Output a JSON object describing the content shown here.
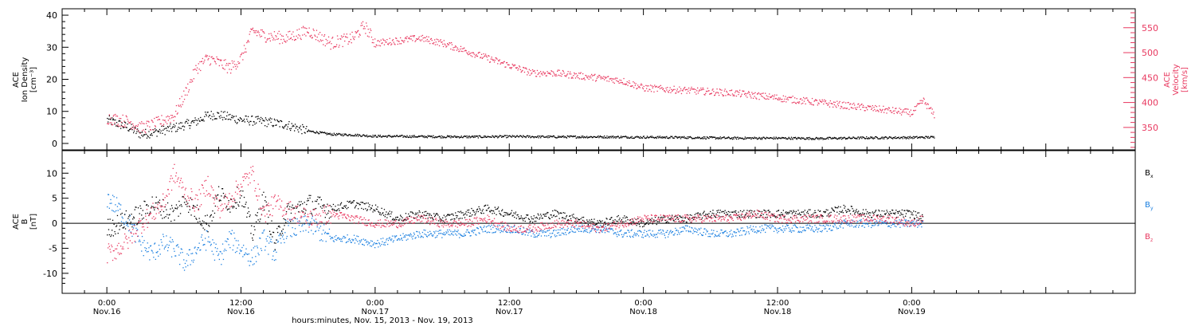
{
  "chart_data": [
    {
      "type": "scatter",
      "panel": "top",
      "ylabel_left": [
        "ACE",
        "Ion Density",
        "[cm⁻³]"
      ],
      "ylabel_right": [
        "ACE",
        "Velocity",
        "[km/s]"
      ],
      "ylim_left": [
        -2,
        42
      ],
      "yticks_left": [
        "0",
        "10",
        "20",
        "30",
        "40"
      ],
      "ylim_right": [
        305,
        588
      ],
      "yticks_right": [
        "350",
        "400",
        "450",
        "500",
        "550"
      ],
      "xlim_hours": [
        -4,
        92
      ],
      "series": [
        {
          "name": "",
          "axis": "left",
          "color": "#000000",
          "x_hours": [
            0,
            2,
            3,
            4,
            6,
            8,
            9,
            10,
            12,
            14,
            16,
            18,
            20,
            22,
            24,
            28,
            32,
            36,
            40,
            44,
            48,
            52,
            56,
            60,
            64,
            68,
            72,
            74
          ],
          "values": [
            7.5,
            5,
            3,
            3.5,
            5,
            7,
            9,
            9,
            7.5,
            7,
            6,
            4,
            3,
            2.8,
            2.4,
            2.3,
            2.2,
            2.3,
            2.2,
            2.2,
            2.1,
            2.0,
            1.8,
            1.8,
            1.7,
            1.9,
            2.0,
            2.1
          ]
        },
        {
          "name": "",
          "axis": "right",
          "color": "#e8385f",
          "x_hours": [
            0,
            2,
            3,
            4,
            6,
            7,
            8,
            9,
            10,
            11,
            12,
            13,
            14,
            16,
            18,
            20,
            22,
            23,
            24,
            26,
            28,
            30,
            32,
            34,
            36,
            38,
            40,
            42,
            44,
            46,
            48,
            52,
            56,
            60,
            64,
            68,
            70,
            72,
            73,
            74
          ],
          "values": [
            370,
            362,
            350,
            355,
            375,
            420,
            470,
            490,
            480,
            470,
            490,
            545,
            535,
            530,
            545,
            520,
            530,
            555,
            520,
            525,
            530,
            520,
            505,
            490,
            475,
            460,
            460,
            455,
            450,
            445,
            430,
            425,
            420,
            410,
            400,
            390,
            385,
            380,
            405,
            375
          ]
        }
      ]
    },
    {
      "type": "scatter",
      "panel": "bottom",
      "ylabel_left": [
        "ACE",
        "B",
        "[nT]"
      ],
      "ylim": [
        -14,
        14.5
      ],
      "yticks": [
        "-10",
        "-5",
        "0",
        "5",
        "10"
      ],
      "xlim_hours": [
        -4,
        92
      ],
      "xtick_times": [
        "0:00",
        "12:00",
        "0:00",
        "12:00",
        "0:00",
        "12:00",
        "0:00"
      ],
      "xtick_dates": [
        "Nov.16",
        "Nov.16",
        "Nov.17",
        "Nov.17",
        "Nov.18",
        "Nov.18",
        "Nov.19"
      ],
      "xtick_hours": [
        0,
        12,
        24,
        36,
        48,
        60,
        72
      ],
      "xlabel": "hours:minutes, Nov. 15, 2013 - Nov. 19, 2013",
      "series": [
        {
          "name": "Bx",
          "color": "#000000",
          "x_hours": [
            0,
            1,
            2,
            3,
            4,
            5,
            6,
            7,
            8,
            9,
            10,
            11,
            12,
            13,
            14,
            15,
            16,
            17,
            18,
            20,
            22,
            24,
            26,
            28,
            30,
            32,
            34,
            36,
            38,
            40,
            42,
            44,
            46,
            48,
            50,
            52,
            54,
            56,
            58,
            60,
            62,
            64,
            66,
            68,
            70,
            72,
            73
          ],
          "values": [
            -1,
            0,
            1,
            2,
            4,
            3,
            2,
            5,
            2,
            0,
            6,
            4,
            6,
            -2,
            5,
            -4,
            2,
            3,
            4,
            3,
            4,
            3,
            1,
            2,
            1,
            2,
            3,
            2,
            1,
            2,
            1,
            0,
            1,
            0,
            1,
            1,
            2,
            2,
            2,
            2,
            2,
            2,
            3,
            2,
            2,
            2,
            1
          ]
        },
        {
          "name": "By",
          "color": "#1a7fe0",
          "x_hours": [
            0,
            1,
            2,
            3,
            4,
            5,
            6,
            7,
            8,
            9,
            10,
            11,
            12,
            13,
            14,
            15,
            16,
            17,
            18,
            20,
            22,
            24,
            26,
            28,
            30,
            32,
            34,
            36,
            38,
            40,
            42,
            44,
            46,
            48,
            50,
            52,
            54,
            56,
            58,
            60,
            62,
            64,
            66,
            68,
            70,
            72,
            73
          ],
          "values": [
            5,
            3,
            0,
            -4,
            -6,
            -4,
            -5,
            -8,
            -5,
            -3,
            -7,
            -3,
            -5,
            -7,
            -3,
            -6,
            -1,
            -1,
            0,
            -3,
            -3,
            -4,
            -3,
            -2,
            -2,
            -2,
            -1,
            -1,
            -2,
            -2,
            -1,
            -1,
            -2,
            -2,
            -2,
            -1,
            -2,
            -2,
            -1,
            -1,
            -1,
            -1,
            0,
            0,
            0,
            0,
            0
          ]
        },
        {
          "name": "Bz",
          "color": "#e8385f",
          "x_hours": [
            0,
            1,
            2,
            3,
            4,
            5,
            6,
            7,
            8,
            9,
            10,
            11,
            12,
            13,
            14,
            15,
            16,
            17,
            18,
            20,
            22,
            24,
            26,
            28,
            30,
            32,
            34,
            36,
            38,
            40,
            42,
            44,
            46,
            48,
            50,
            52,
            54,
            56,
            58,
            60,
            62,
            64,
            66,
            68,
            70,
            72,
            73
          ],
          "values": [
            -6,
            -5,
            -3,
            0,
            2,
            4,
            10,
            6,
            4,
            8,
            3,
            5,
            8,
            10,
            2,
            4,
            3,
            2,
            1,
            2,
            1,
            0,
            0,
            1,
            0,
            0,
            1,
            -1,
            -1,
            0,
            0,
            -1,
            0,
            1,
            1,
            1,
            1,
            1,
            2,
            1,
            1,
            1,
            1,
            1,
            1,
            0,
            1
          ]
        }
      ],
      "legend": [
        {
          "label": "B",
          "sub": "x",
          "color": "#000000"
        },
        {
          "label": "B",
          "sub": "y",
          "color": "#1a7fe0"
        },
        {
          "label": "B",
          "sub": "z",
          "color": "#e8385f"
        }
      ]
    }
  ]
}
